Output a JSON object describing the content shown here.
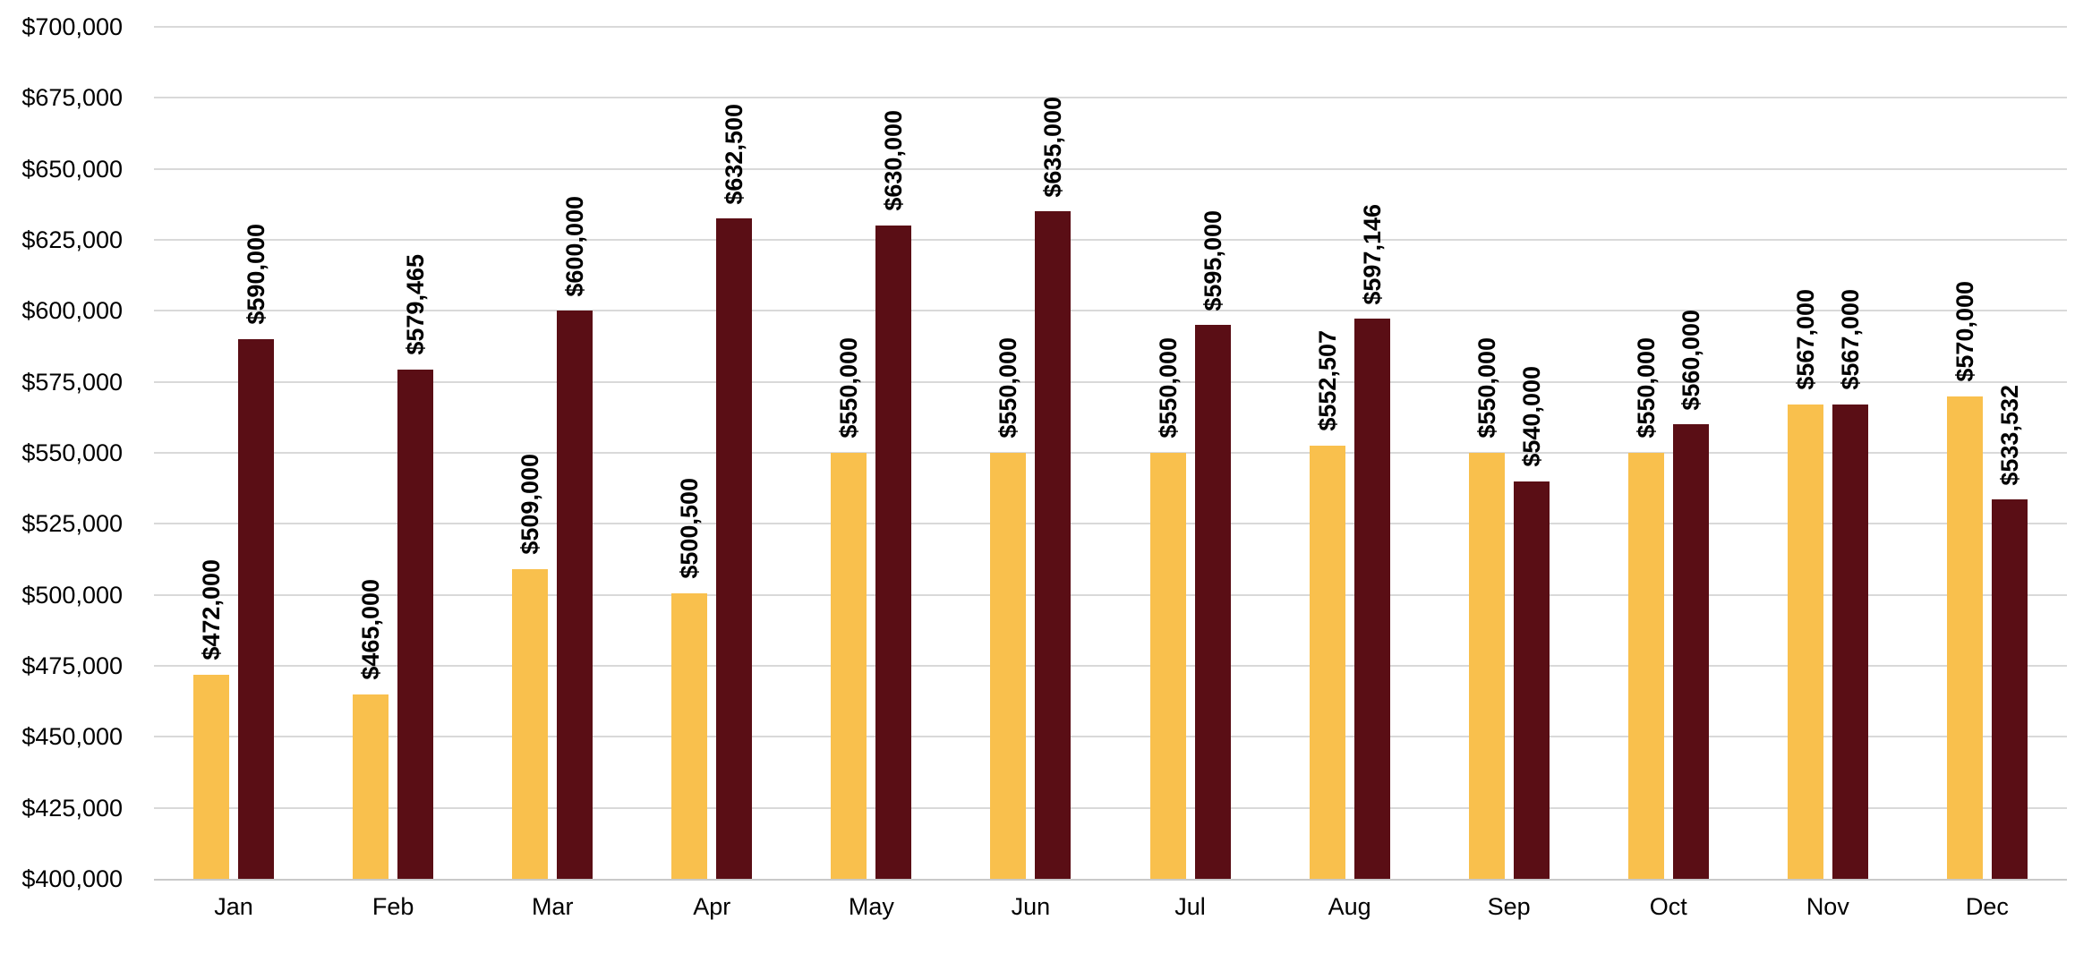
{
  "chart_data": {
    "type": "bar",
    "subtype": "clustered-column",
    "title": "",
    "xlabel": "",
    "ylabel": "",
    "categories": [
      "Jan",
      "Feb",
      "Mar",
      "Apr",
      "May",
      "Jun",
      "Jul",
      "Aug",
      "Sep",
      "Oct",
      "Nov",
      "Dec"
    ],
    "series": [
      {
        "key": "gold-bars",
        "color": "#F9C04D",
        "values": [
          472000,
          465000,
          509000,
          500500,
          550000,
          550000,
          550000,
          552507,
          550000,
          550000,
          567000,
          570000
        ],
        "labels": [
          "$472,000",
          "$465,000",
          "$509,000",
          "$500,500",
          "$550,000",
          "$550,000",
          "$550,000",
          "$552,507",
          "$550,000",
          "$550,000",
          "$567,000",
          "$570,000"
        ]
      },
      {
        "key": "maroon-bars",
        "color": "#5A0E15",
        "values": [
          590000,
          579465,
          600000,
          632500,
          630000,
          635000,
          595000,
          597146,
          540000,
          560000,
          567000,
          533532
        ],
        "labels": [
          "$590,000",
          "$579,465",
          "$600,000",
          "$632,500",
          "$630,000",
          "$635,000",
          "$595,000",
          "$597,146",
          "$540,000",
          "$560,000",
          "$567,000",
          "$533,532"
        ]
      }
    ],
    "y_axis": {
      "min": 400000,
      "max": 700000,
      "step": 25000,
      "tick_labels": [
        "$400,000",
        "$425,000",
        "$450,000",
        "$475,000",
        "$500,000",
        "$525,000",
        "$550,000",
        "$575,000",
        "$600,000",
        "$625,000",
        "$650,000",
        "$675,000",
        "$700,000"
      ]
    },
    "grid": true,
    "legend": "none",
    "data_labels": {
      "rotation": -90,
      "position": "above-bar"
    }
  },
  "style": {
    "background": "#FFFFFF",
    "gridline_color": "#D9D9D9",
    "axis_line_color": "#C9C9C9",
    "text_color": "#000000",
    "gold_color": "#F9C04D",
    "maroon_color": "#5A0E15"
  }
}
